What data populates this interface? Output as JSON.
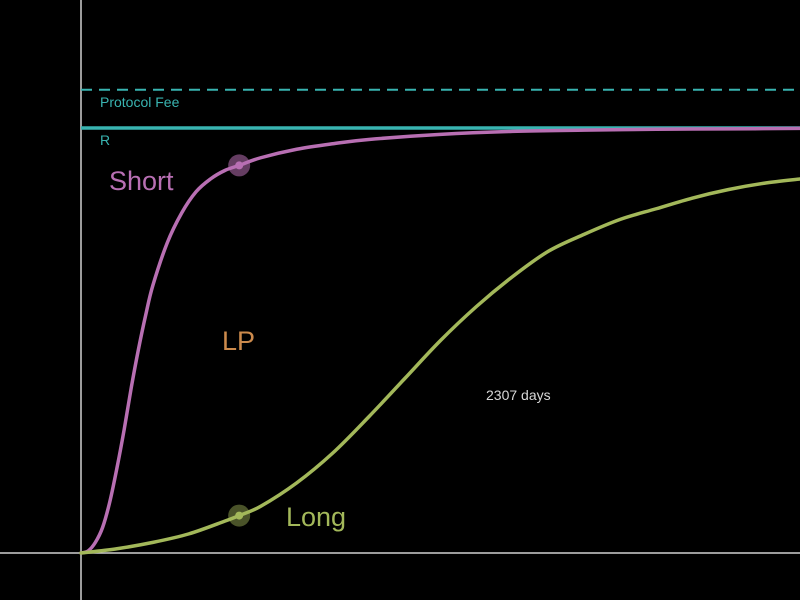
{
  "chart_data": {
    "type": "line",
    "colors": {
      "short": "#b86fb3",
      "long": "#a3b85a",
      "fee": "#39b4b1",
      "lp": "#cc8a4c",
      "axis": "#d0d0d0",
      "days_text": "#d8d8d8",
      "background": "#000000"
    },
    "labels": {
      "protocol_fee": "Protocol Fee",
      "r": "R",
      "short": "Short",
      "lp": "LP",
      "long": "Long",
      "days": "2307 days"
    },
    "reference_lines": {
      "protocol_fee": {
        "y": 1.09,
        "style": "dashed"
      },
      "r": {
        "y": 1.0,
        "style": "solid"
      }
    },
    "xlim": [
      0,
      1
    ],
    "ylim": [
      0,
      1.25
    ],
    "markers": {
      "short": {
        "x": 0.22,
        "y": 0.912
      },
      "long": {
        "x": 0.22,
        "y": 0.088
      }
    },
    "series": [
      {
        "name": "Short",
        "points": [
          [
            0,
            0
          ],
          [
            0.01,
            0.005
          ],
          [
            0.02,
            0.025
          ],
          [
            0.03,
            0.06
          ],
          [
            0.04,
            0.12
          ],
          [
            0.05,
            0.2
          ],
          [
            0.06,
            0.29
          ],
          [
            0.07,
            0.39
          ],
          [
            0.08,
            0.48
          ],
          [
            0.09,
            0.56
          ],
          [
            0.1,
            0.63
          ],
          [
            0.12,
            0.73
          ],
          [
            0.14,
            0.8
          ],
          [
            0.16,
            0.85
          ],
          [
            0.18,
            0.88
          ],
          [
            0.2,
            0.9
          ],
          [
            0.22,
            0.912
          ],
          [
            0.25,
            0.93
          ],
          [
            0.3,
            0.95
          ],
          [
            0.35,
            0.963
          ],
          [
            0.4,
            0.973
          ],
          [
            0.5,
            0.985
          ],
          [
            0.6,
            0.992
          ],
          [
            0.7,
            0.995
          ],
          [
            0.8,
            0.997
          ],
          [
            0.9,
            0.998
          ],
          [
            1.0,
            0.999
          ]
        ]
      },
      {
        "name": "Long",
        "points": [
          [
            0,
            0
          ],
          [
            0.05,
            0.01
          ],
          [
            0.1,
            0.025
          ],
          [
            0.15,
            0.045
          ],
          [
            0.2,
            0.075
          ],
          [
            0.22,
            0.088
          ],
          [
            0.25,
            0.11
          ],
          [
            0.3,
            0.165
          ],
          [
            0.35,
            0.235
          ],
          [
            0.4,
            0.32
          ],
          [
            0.45,
            0.41
          ],
          [
            0.5,
            0.5
          ],
          [
            0.55,
            0.58
          ],
          [
            0.6,
            0.65
          ],
          [
            0.65,
            0.71
          ],
          [
            0.7,
            0.75
          ],
          [
            0.75,
            0.785
          ],
          [
            0.8,
            0.81
          ],
          [
            0.85,
            0.835
          ],
          [
            0.9,
            0.855
          ],
          [
            0.95,
            0.87
          ],
          [
            1.0,
            0.88
          ]
        ]
      }
    ]
  }
}
